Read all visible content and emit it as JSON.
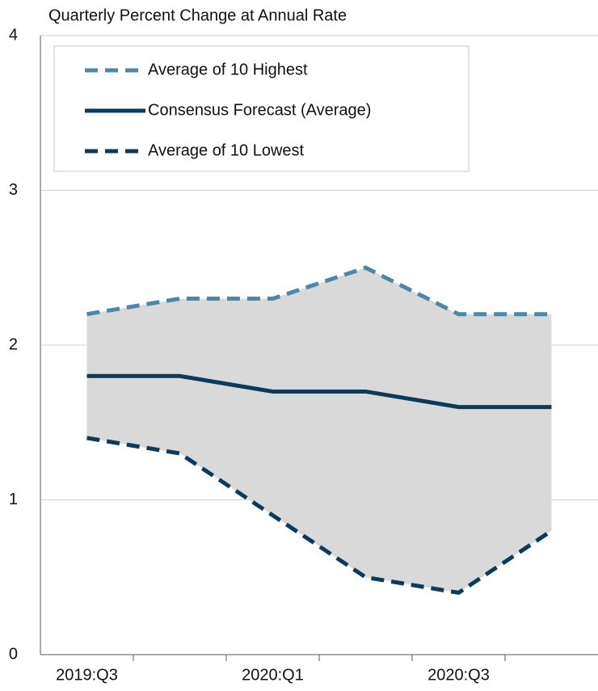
{
  "chart_data": {
    "type": "line",
    "title": "Quarterly Percent Change at Annual Rate",
    "categories": [
      "2019:Q3",
      null,
      "2020:Q1",
      null,
      "2020:Q3",
      null
    ],
    "series": [
      {
        "name": "Average of 10 Highest",
        "color": "#4f86a3",
        "dash": true,
        "values": [
          2.2,
          2.3,
          2.3,
          2.5,
          2.2,
          2.2
        ]
      },
      {
        "name": "Consensus Forecast (Average)",
        "color": "#0e3a5a",
        "dash": false,
        "values": [
          1.8,
          1.8,
          1.7,
          1.7,
          1.6,
          1.6
        ]
      },
      {
        "name": "Average of 10 Lowest",
        "color": "#0e3a5a",
        "dash": true,
        "values": [
          1.4,
          1.3,
          0.9,
          0.5,
          0.4,
          0.8
        ]
      }
    ],
    "band_color": "#d9d9d9",
    "ylim": [
      0,
      4
    ],
    "yticks": [
      0,
      1,
      2,
      3,
      4
    ],
    "grid": true,
    "legend": "top-left"
  }
}
